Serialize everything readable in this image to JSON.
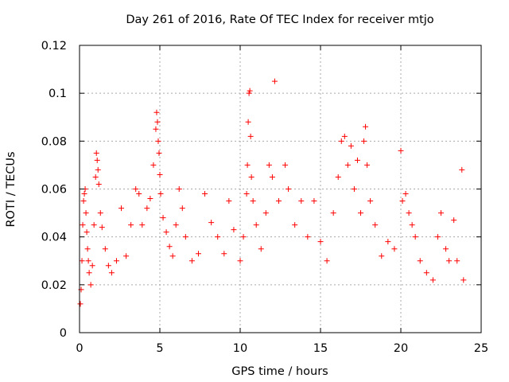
{
  "chart_data": {
    "type": "scatter",
    "title": "Day 261 of 2016, Rate Of TEC Index for receiver mtjo",
    "xlabel": "GPS time / hours",
    "ylabel": "ROTI / TECUs",
    "xlim": [
      0,
      25
    ],
    "ylim": [
      0,
      0.12
    ],
    "xticks": [
      "0",
      "5",
      "10",
      "15",
      "20",
      "25"
    ],
    "yticks": [
      "0",
      "0.02",
      "0.04",
      "0.06",
      "0.08",
      "0.1",
      "0.12"
    ],
    "grid": true,
    "marker": "+",
    "color": "#ff0000",
    "series": [
      {
        "name": "ROTI",
        "points": [
          [
            0.05,
            0.012
          ],
          [
            0.1,
            0.018
          ],
          [
            0.15,
            0.03
          ],
          [
            0.2,
            0.045
          ],
          [
            0.25,
            0.055
          ],
          [
            0.3,
            0.058
          ],
          [
            0.35,
            0.06
          ],
          [
            0.4,
            0.05
          ],
          [
            0.45,
            0.042
          ],
          [
            0.5,
            0.035
          ],
          [
            0.55,
            0.03
          ],
          [
            0.6,
            0.025
          ],
          [
            0.7,
            0.02
          ],
          [
            0.8,
            0.028
          ],
          [
            0.9,
            0.045
          ],
          [
            1.0,
            0.065
          ],
          [
            1.05,
            0.075
          ],
          [
            1.1,
            0.072
          ],
          [
            1.15,
            0.068
          ],
          [
            1.2,
            0.062
          ],
          [
            1.3,
            0.05
          ],
          [
            1.4,
            0.044
          ],
          [
            1.6,
            0.035
          ],
          [
            1.8,
            0.028
          ],
          [
            2.0,
            0.025
          ],
          [
            2.3,
            0.03
          ],
          [
            2.6,
            0.052
          ],
          [
            2.9,
            0.032
          ],
          [
            3.2,
            0.045
          ],
          [
            3.5,
            0.06
          ],
          [
            3.7,
            0.058
          ],
          [
            3.9,
            0.045
          ],
          [
            4.2,
            0.052
          ],
          [
            4.4,
            0.056
          ],
          [
            4.6,
            0.07
          ],
          [
            4.75,
            0.085
          ],
          [
            4.8,
            0.092
          ],
          [
            4.85,
            0.088
          ],
          [
            4.9,
            0.08
          ],
          [
            4.95,
            0.075
          ],
          [
            5.0,
            0.066
          ],
          [
            5.05,
            0.058
          ],
          [
            5.2,
            0.048
          ],
          [
            5.4,
            0.042
          ],
          [
            5.6,
            0.036
          ],
          [
            5.8,
            0.032
          ],
          [
            6.0,
            0.045
          ],
          [
            6.2,
            0.06
          ],
          [
            6.4,
            0.052
          ],
          [
            6.6,
            0.04
          ],
          [
            7.0,
            0.03
          ],
          [
            7.4,
            0.033
          ],
          [
            7.8,
            0.058
          ],
          [
            8.2,
            0.046
          ],
          [
            8.6,
            0.04
          ],
          [
            9.0,
            0.033
          ],
          [
            9.3,
            0.055
          ],
          [
            9.6,
            0.043
          ],
          [
            10.0,
            0.03
          ],
          [
            10.2,
            0.04
          ],
          [
            10.4,
            0.058
          ],
          [
            10.45,
            0.07
          ],
          [
            10.5,
            0.088
          ],
          [
            10.55,
            0.1
          ],
          [
            10.6,
            0.101
          ],
          [
            10.65,
            0.082
          ],
          [
            10.7,
            0.065
          ],
          [
            10.8,
            0.055
          ],
          [
            11.0,
            0.045
          ],
          [
            11.3,
            0.035
          ],
          [
            11.6,
            0.05
          ],
          [
            11.8,
            0.07
          ],
          [
            12.0,
            0.065
          ],
          [
            12.15,
            0.105
          ],
          [
            12.4,
            0.055
          ],
          [
            12.8,
            0.07
          ],
          [
            13.0,
            0.06
          ],
          [
            13.4,
            0.045
          ],
          [
            13.8,
            0.055
          ],
          [
            14.2,
            0.04
          ],
          [
            14.6,
            0.055
          ],
          [
            15.0,
            0.038
          ],
          [
            15.4,
            0.03
          ],
          [
            15.8,
            0.05
          ],
          [
            16.1,
            0.065
          ],
          [
            16.3,
            0.08
          ],
          [
            16.5,
            0.082
          ],
          [
            16.7,
            0.07
          ],
          [
            16.9,
            0.078
          ],
          [
            17.1,
            0.06
          ],
          [
            17.3,
            0.072
          ],
          [
            17.5,
            0.05
          ],
          [
            17.7,
            0.08
          ],
          [
            17.8,
            0.086
          ],
          [
            17.9,
            0.07
          ],
          [
            18.1,
            0.055
          ],
          [
            18.4,
            0.045
          ],
          [
            18.8,
            0.032
          ],
          [
            19.2,
            0.038
          ],
          [
            19.6,
            0.035
          ],
          [
            20.0,
            0.076
          ],
          [
            20.1,
            0.055
          ],
          [
            20.3,
            0.058
          ],
          [
            20.5,
            0.05
          ],
          [
            20.7,
            0.045
          ],
          [
            20.9,
            0.04
          ],
          [
            21.2,
            0.03
          ],
          [
            21.6,
            0.025
          ],
          [
            22.0,
            0.022
          ],
          [
            22.3,
            0.04
          ],
          [
            22.5,
            0.05
          ],
          [
            22.8,
            0.035
          ],
          [
            23.0,
            0.03
          ],
          [
            23.3,
            0.047
          ],
          [
            23.5,
            0.03
          ],
          [
            23.8,
            0.068
          ],
          [
            23.9,
            0.022
          ]
        ]
      }
    ]
  }
}
